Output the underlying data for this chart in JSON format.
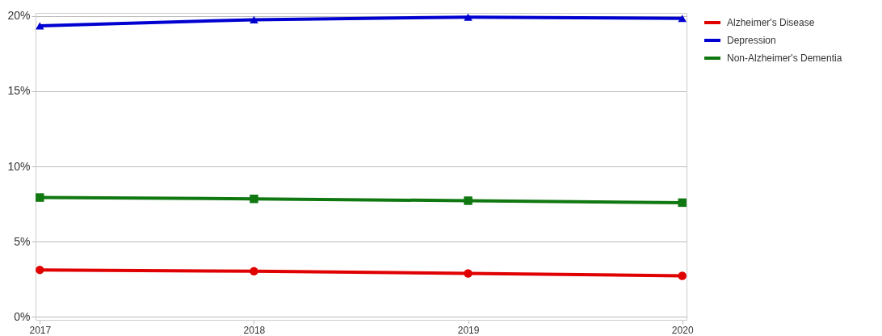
{
  "chart_data": {
    "type": "line",
    "x": [
      2017,
      2018,
      2019,
      2020
    ],
    "xlim": [
      2016.98,
      2020.02
    ],
    "xticks": [
      2017,
      2018,
      2019,
      2020
    ],
    "ylim": [
      -0.2,
      20.2
    ],
    "yticks": [
      {
        "value": 0,
        "label": "0%"
      },
      {
        "value": 5,
        "label": "5%"
      },
      {
        "value": 10,
        "label": "10%"
      },
      {
        "value": 15,
        "label": "15%"
      },
      {
        "value": 20,
        "label": "20%"
      }
    ],
    "grid": "y",
    "legend": "right",
    "line_style": "solid",
    "series": [
      {
        "name": "Alzheimer's Disease",
        "color": "#e00000",
        "marker": "circle",
        "values": [
          3.12,
          3.03,
          2.89,
          2.73
        ]
      },
      {
        "name": "Depression",
        "color": "#0000d0",
        "marker": "triangle",
        "values": [
          19.34,
          19.75,
          19.92,
          19.84
        ]
      },
      {
        "name": "Non-Alzheimer's Dementia",
        "color": "#107810",
        "marker": "square",
        "values": [
          7.93,
          7.84,
          7.72,
          7.59
        ]
      }
    ]
  }
}
